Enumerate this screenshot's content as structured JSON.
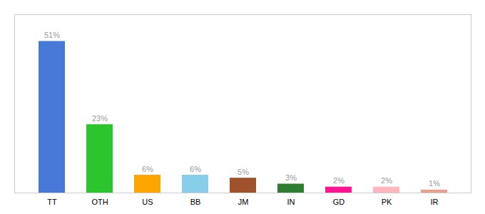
{
  "chart_data": {
    "type": "bar",
    "categories": [
      "TT",
      "OTH",
      "US",
      "BB",
      "JM",
      "IN",
      "GD",
      "PK",
      "IR"
    ],
    "values": [
      51,
      23,
      6,
      6,
      5,
      3,
      2,
      2,
      1
    ],
    "value_labels": [
      "51%",
      "23%",
      "6%",
      "6%",
      "5%",
      "3%",
      "2%",
      "2%",
      "1%"
    ],
    "colors": [
      "#4878D8",
      "#2DC52D",
      "#FFA500",
      "#87CEEB",
      "#A0522D",
      "#2E7D32",
      "#FF1493",
      "#FFB6C1",
      "#E8A090"
    ],
    "ylim": [
      0,
      60
    ],
    "data_labels": true,
    "tick_labels": "x",
    "grid": false
  }
}
